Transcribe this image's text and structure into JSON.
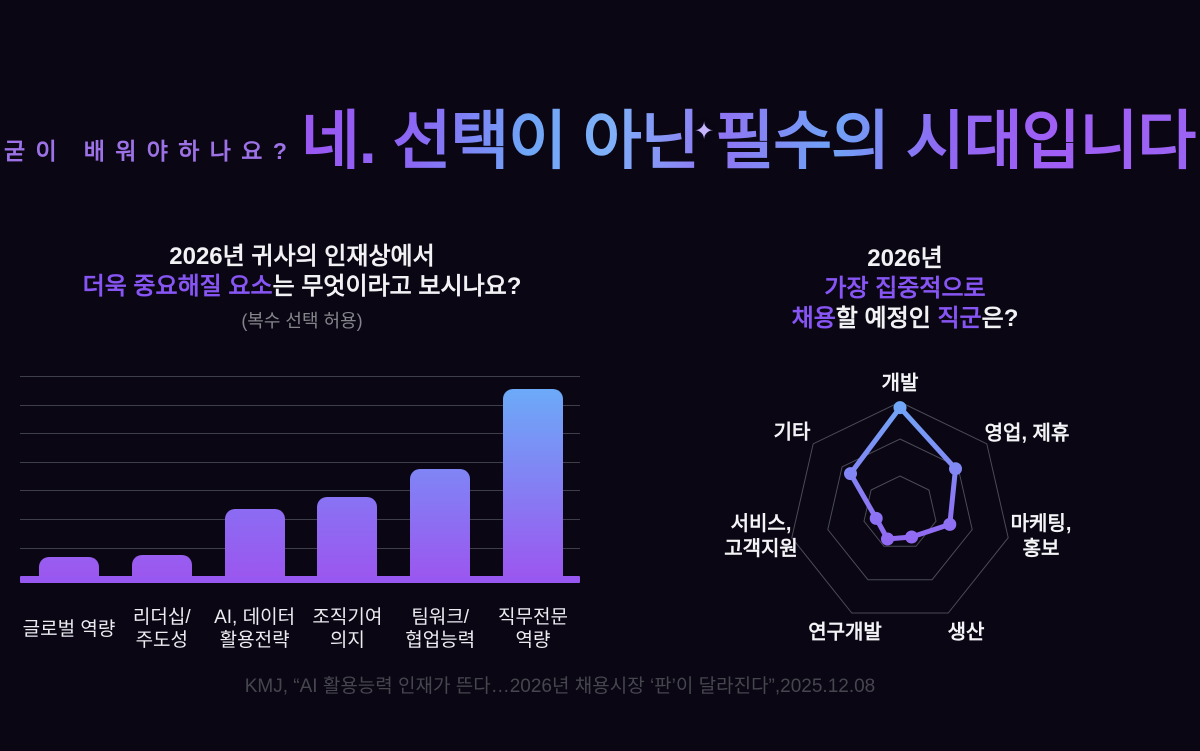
{
  "page": {
    "background": "#0a0613"
  },
  "header": {
    "eyebrow": "굳이 배워야하나요?",
    "title": "네. 선택이 아닌 필수의 시대입니다!",
    "sparkle_icon": "✦",
    "accent_purple": "#9b5cf5",
    "accent_blue": "#6fa6f7"
  },
  "bar_section": {
    "title_line1": "2026년 귀사의 인재상에서",
    "title_line2_highlight": "더욱 중요해질 요소",
    "title_line2_rest": "는 무엇이라고 보시나요?",
    "subtitle": "(복수 선택 허용)",
    "labels": [
      [
        "글로벌 역량"
      ],
      [
        "리더십/",
        "주도성"
      ],
      [
        "AI, 데이터",
        "활용전략"
      ],
      [
        "조직기여",
        "의지"
      ],
      [
        "팀워크/",
        "협업능력"
      ],
      [
        "직무전문",
        "역량"
      ]
    ]
  },
  "radar_section": {
    "title_line1": "2026년",
    "title_line2": "가장 집중적으로",
    "title_line3_parts": [
      {
        "text": "채용",
        "highlight": true
      },
      {
        "text": "할 예정인 ",
        "highlight": false
      },
      {
        "text": "직군",
        "highlight": true
      },
      {
        "text": "은?",
        "highlight": false
      }
    ],
    "axes": [
      {
        "label": "개발"
      },
      {
        "label": "영업, 제휴"
      },
      {
        "label": "마케팅,\n홍보"
      },
      {
        "label": "생산"
      },
      {
        "label": "연구개발"
      },
      {
        "label": "서비스,\n고객지원"
      },
      {
        "label": "기타"
      }
    ]
  },
  "footer": {
    "source": "KMJ, “AI 활용능력 인재가 뜬다…2026년 채용시장 ‘판’이 달라진다”,2025.12.08"
  },
  "chart_data": [
    {
      "type": "bar",
      "title": "2026년 귀사의 인재상에서 더욱 중요해질 요소는 무엇이라고 보시나요? (복수 선택 허용)",
      "categories": [
        "글로벌 역량",
        "리더십/주도성",
        "AI, 데이터 활용전략",
        "조직기여 의지",
        "팀워크/협업능력",
        "직무전문 역량"
      ],
      "values": [
        10,
        11,
        34,
        40,
        54,
        94
      ],
      "value_unit": "% of plot height (no numeric axis labels shown in source)",
      "ylim": [
        0,
        100
      ],
      "grid": true,
      "gridline_count": 7,
      "gridline_color": "#3f3f49",
      "bar_top_colors": [
        "#985ef0",
        "#985ef0",
        "#8b6cf2",
        "#8873f3",
        "#7f85f5",
        "#6caaf8"
      ],
      "bar_bottom_color": "#9b57ef",
      "baseline_color": "#9658f1"
    },
    {
      "type": "radar",
      "title": "2026년 가장 집중적으로 채용할 예정인 직군은?",
      "categories": [
        "개발",
        "영업, 제휴",
        "마케팅, 홍보",
        "생산",
        "연구개발",
        "서비스, 고객지원",
        "기타"
      ],
      "values": [
        0.95,
        0.64,
        0.46,
        0.24,
        0.26,
        0.22,
        0.57
      ],
      "value_unit": "fraction of outer ring (no numeric labels shown in source)",
      "rings": [
        0.333,
        0.667,
        1
      ],
      "ring_color": "#4b4b56",
      "line_gradient_top": "#6fa9f7",
      "line_gradient_mid": "#8a79f4",
      "line_gradient_bottom": "#9a5bf1",
      "legend": false
    }
  ]
}
